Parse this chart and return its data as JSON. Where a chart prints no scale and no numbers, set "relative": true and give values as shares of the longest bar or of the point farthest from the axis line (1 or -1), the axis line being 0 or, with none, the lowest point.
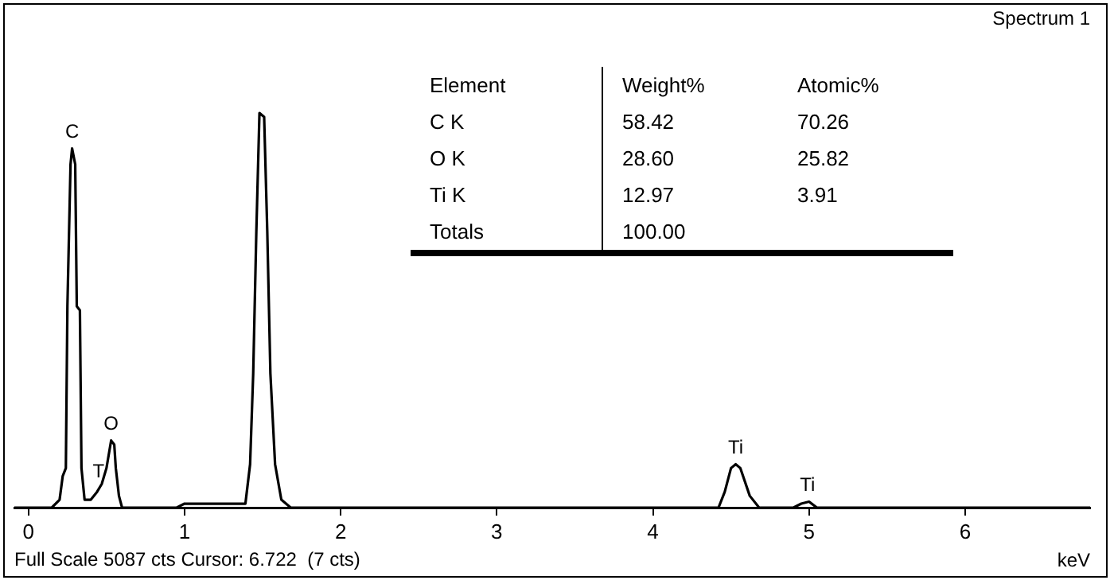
{
  "chart_data": [
    {
      "type": "line",
      "title": "Spectrum 1",
      "xlabel": "keV",
      "relative": true,
      "xlim": [
        -0.09,
        6.8
      ],
      "xticks": [
        0,
        1,
        2,
        3,
        4,
        5,
        6
      ],
      "grid": false,
      "legend": false,
      "marker": "none",
      "line_style": "solid",
      "series": [
        {
          "color": "#000000",
          "x": [
            -0.09,
            0.15,
            0.2,
            0.22,
            0.24,
            0.25,
            0.27,
            0.28,
            0.3,
            0.31,
            0.33,
            0.34,
            0.36,
            0.4,
            0.44,
            0.47,
            0.5,
            0.53,
            0.55,
            0.56,
            0.58,
            0.6,
            0.95,
            1.0,
            1.35,
            1.39,
            1.42,
            1.44,
            1.46,
            1.48,
            1.51,
            1.53,
            1.55,
            1.58,
            1.62,
            1.68,
            4.42,
            4.46,
            4.5,
            4.53,
            4.56,
            4.62,
            4.68,
            4.9,
            4.95,
            5.0,
            5.05,
            6.8
          ],
          "values": [
            0,
            0,
            0.02,
            0.08,
            0.1,
            0.51,
            0.87,
            0.91,
            0.87,
            0.51,
            0.5,
            0.1,
            0.02,
            0.02,
            0.04,
            0.06,
            0.1,
            0.17,
            0.16,
            0.1,
            0.03,
            0,
            0,
            0.01,
            0.01,
            0.01,
            0.11,
            0.34,
            0.7,
            1,
            0.99,
            0.7,
            0.34,
            0.11,
            0.02,
            0,
            0,
            0.04,
            0.1,
            0.11,
            0.1,
            0.03,
            0,
            0,
            0.01,
            0.015,
            0,
            0
          ]
        }
      ],
      "annotations": [
        {
          "text": "C",
          "x": 0.28,
          "y": 0.91
        },
        {
          "text": "T",
          "x": 0.45,
          "y": 0.05
        },
        {
          "text": "O",
          "x": 0.53,
          "y": 0.17
        },
        {
          "text": "Ti",
          "x": 4.53,
          "y": 0.11
        },
        {
          "text": "Ti",
          "x": 4.99,
          "y": 0.015
        },
        "Full Scale 5087 cts Cursor: 6.722  (7 cts)"
      ]
    },
    {
      "type": "other",
      "ylabel": "Element",
      "categories": [
        "C K",
        "O K",
        "Ti K",
        "Totals"
      ],
      "data_labels": true,
      "series": [
        {
          "name": "Weight%",
          "values": [
            58.42,
            28.6,
            12.97,
            100.0
          ],
          "value_labels": [
            "58.42",
            "28.60",
            "12.97",
            "100.00"
          ]
        },
        {
          "name": "Atomic%",
          "values": [
            70.26,
            25.82,
            3.91,
            null
          ],
          "value_labels": [
            "70.26",
            "25.82",
            "3.91",
            null
          ]
        }
      ]
    }
  ]
}
